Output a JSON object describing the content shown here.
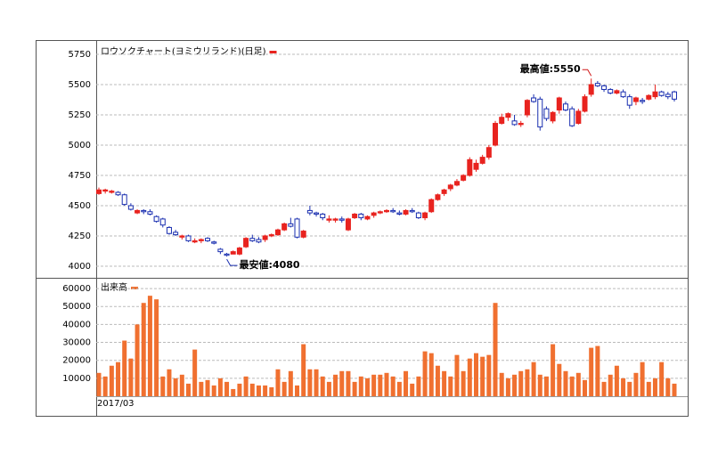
{
  "chart_data": [
    {
      "type": "candlestick",
      "title": "ロウソクチャート(ヨミウリランド)(日足)",
      "up_color": "#e8231f",
      "down_color": "#1a2fb0",
      "open": [
        4600,
        4620,
        4610,
        4610,
        4590,
        4500,
        4440,
        4460,
        4450,
        4410,
        4390,
        4320,
        4280,
        4240,
        4250,
        4200,
        4210,
        4230,
        4200,
        4140,
        4100,
        4100,
        4100,
        4160,
        4230,
        4220,
        4220,
        4250,
        4260,
        4300,
        4350,
        4390,
        4240,
        4460,
        4440,
        4430,
        4380,
        4380,
        4390,
        4300,
        4400,
        4430,
        4390,
        4420,
        4440,
        4450,
        4460,
        4440,
        4430,
        4460,
        4440,
        4400,
        4450,
        4550,
        4600,
        4640,
        4670,
        4710,
        4750,
        4800,
        4850,
        4900,
        5000,
        5180,
        5230,
        5200,
        5170,
        5250,
        5390,
        5380,
        5300,
        5200,
        5290,
        5340,
        5300,
        5180,
        5280,
        5420,
        5510,
        5490,
        5460,
        5430,
        5440,
        5400,
        5360,
        5370,
        5380,
        5400,
        5440,
        5420,
        5440
      ],
      "high": [
        4650,
        4640,
        4630,
        4620,
        4600,
        4520,
        4470,
        4470,
        4470,
        4420,
        4400,
        4330,
        4300,
        4260,
        4260,
        4230,
        4230,
        4240,
        4210,
        4150,
        4110,
        4130,
        4160,
        4240,
        4260,
        4240,
        4260,
        4270,
        4310,
        4360,
        4400,
        4400,
        4300,
        4500,
        4450,
        4440,
        4420,
        4400,
        4410,
        4400,
        4440,
        4440,
        4420,
        4450,
        4460,
        4470,
        4480,
        4460,
        4470,
        4480,
        4450,
        4450,
        4560,
        4600,
        4640,
        4680,
        4720,
        4760,
        4900,
        4880,
        4920,
        5000,
        5200,
        5260,
        5270,
        5250,
        5200,
        5380,
        5420,
        5400,
        5320,
        5280,
        5400,
        5360,
        5320,
        5300,
        5420,
        5550,
        5530,
        5500,
        5470,
        5460,
        5460,
        5420,
        5400,
        5390,
        5420,
        5500,
        5450,
        5440,
        5450
      ],
      "low": [
        4590,
        4600,
        4600,
        4580,
        4500,
        4460,
        4430,
        4430,
        4420,
        4360,
        4320,
        4260,
        4250,
        4220,
        4200,
        4190,
        4190,
        4200,
        4180,
        4100,
        4080,
        4100,
        4090,
        4150,
        4200,
        4190,
        4200,
        4240,
        4250,
        4290,
        4320,
        4230,
        4230,
        4420,
        4410,
        4380,
        4360,
        4360,
        4360,
        4290,
        4390,
        4380,
        4380,
        4400,
        4430,
        4440,
        4440,
        4420,
        4420,
        4440,
        4390,
        4380,
        4440,
        4540,
        4580,
        4620,
        4660,
        4700,
        4740,
        4780,
        4840,
        4880,
        4990,
        5170,
        5200,
        5160,
        5150,
        5230,
        5350,
        5120,
        5200,
        5180,
        5260,
        5280,
        5150,
        5170,
        5270,
        5400,
        5480,
        5440,
        5420,
        5420,
        5390,
        5300,
        5330,
        5340,
        5370,
        5380,
        5400,
        5380,
        5360
      ],
      "close": [
        4630,
        4630,
        4620,
        4590,
        4510,
        4470,
        4460,
        4450,
        4430,
        4370,
        4340,
        4270,
        4260,
        4250,
        4210,
        4210,
        4220,
        4210,
        4190,
        4120,
        4090,
        4120,
        4150,
        4230,
        4210,
        4200,
        4250,
        4260,
        4300,
        4350,
        4330,
        4240,
        4290,
        4440,
        4430,
        4400,
        4390,
        4390,
        4380,
        4390,
        4430,
        4400,
        4410,
        4440,
        4450,
        4460,
        4450,
        4430,
        4460,
        4450,
        4400,
        4440,
        4550,
        4590,
        4630,
        4670,
        4700,
        4750,
        4880,
        4850,
        4900,
        4980,
        5180,
        5230,
        5260,
        5170,
        5180,
        5370,
        5360,
        5150,
        5220,
        5270,
        5390,
        5290,
        5160,
        5280,
        5400,
        5500,
        5490,
        5460,
        5430,
        5450,
        5400,
        5330,
        5390,
        5360,
        5410,
        5440,
        5410,
        5400,
        5380
      ],
      "ylim": [
        3904,
        5868
      ],
      "yticks": [
        4000,
        4250,
        4500,
        4750,
        5000,
        5250,
        5500,
        5750
      ],
      "annotations": [
        {
          "text": "最高値:5550",
          "index": 77
        },
        {
          "text": "最安値:4080",
          "index": 20
        }
      ]
    },
    {
      "type": "bar",
      "title": "出来高",
      "color": "#f07030",
      "categories": [
        "2017/03",
        null,
        null,
        null,
        null,
        null,
        null,
        null,
        null,
        null,
        null,
        null,
        null,
        null,
        null,
        null,
        null,
        null,
        null,
        null,
        null,
        null,
        null,
        null,
        null,
        null,
        null,
        null,
        null,
        null,
        null,
        null,
        null,
        null,
        null,
        null,
        null,
        null,
        null,
        null,
        null,
        null,
        null,
        null,
        null,
        null,
        null,
        null,
        null,
        null,
        null,
        null,
        null,
        null,
        null,
        null,
        null,
        null,
        null,
        null,
        null,
        null,
        null,
        null,
        null,
        null,
        null,
        null,
        null,
        null,
        null,
        null,
        null,
        null,
        null,
        null,
        null,
        null,
        null,
        null,
        null,
        null,
        null,
        null,
        null,
        null,
        null,
        null,
        null,
        null,
        null
      ],
      "values": [
        13000,
        11000,
        17000,
        19000,
        31000,
        21000,
        40000,
        52000,
        56000,
        54000,
        11000,
        15000,
        10000,
        12000,
        7000,
        26000,
        8000,
        9000,
        6000,
        10000,
        8000,
        4000,
        7000,
        11000,
        7000,
        6000,
        6000,
        5000,
        15000,
        8000,
        14000,
        6000,
        29000,
        15000,
        15000,
        11000,
        8000,
        12000,
        14000,
        14000,
        8000,
        11000,
        10000,
        12000,
        12000,
        13000,
        11000,
        8000,
        14000,
        7000,
        11000,
        25000,
        24000,
        17000,
        14000,
        11000,
        23000,
        14000,
        21000,
        24000,
        22000,
        23000,
        52000,
        13000,
        10000,
        12000,
        14000,
        15000,
        19000,
        12000,
        11000,
        29000,
        18000,
        14000,
        11000,
        13000,
        9000,
        27000,
        28000,
        8000,
        12000,
        17000,
        10000,
        8000,
        13000,
        19000,
        8000,
        10000,
        19000,
        10000,
        7000
      ],
      "ylim": [
        0,
        66000
      ],
      "yticks": [
        10000,
        20000,
        30000,
        40000,
        50000,
        60000
      ]
    }
  ]
}
